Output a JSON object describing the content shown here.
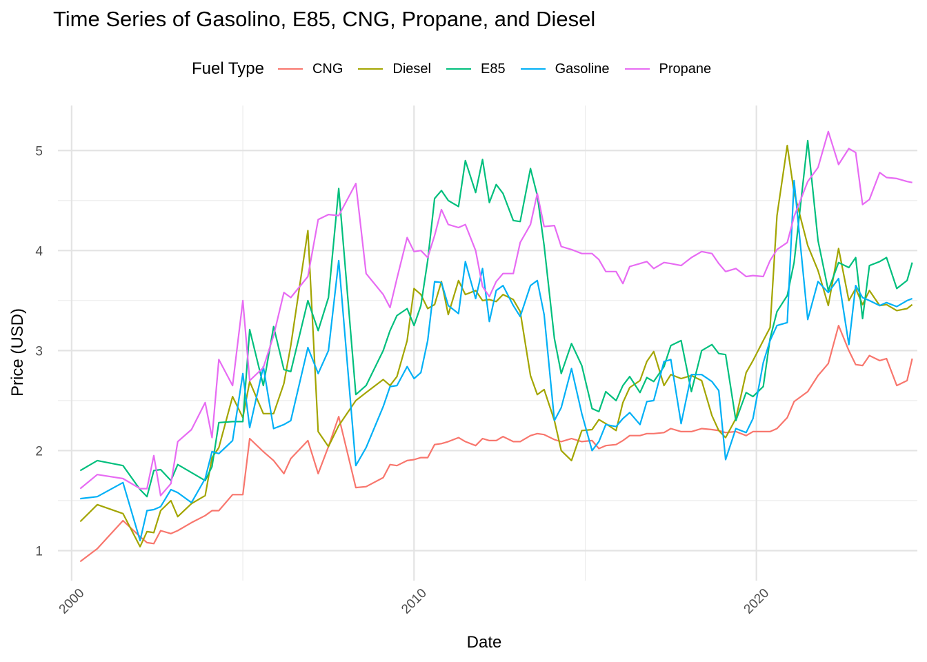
{
  "chart_data": {
    "type": "line",
    "title": "Time Series of Gasolino, E85, CNG, Propane, and Diesel",
    "xlabel": "Date",
    "ylabel": "Price (USD)",
    "legend_title": "Fuel Type",
    "legend_position": "top",
    "grid": true,
    "xlim": [
      1999.6,
      2024.7
    ],
    "ylim": [
      0.7,
      5.45
    ],
    "x_ticks": [
      2000,
      2010,
      2020
    ],
    "x_tick_labels": [
      "2000",
      "2010",
      "2020"
    ],
    "y_ticks": [
      1,
      2,
      3,
      4,
      5
    ],
    "y_tick_labels": [
      "1",
      "2",
      "3",
      "4",
      "5"
    ],
    "series": [
      {
        "name": "CNG",
        "color": "#F8766D",
        "x": [
          2000.25,
          2000.75,
          2001.5,
          2002.0,
          2002.2,
          2002.4,
          2002.6,
          2002.9,
          2003.1,
          2003.5,
          2003.9,
          2004.1,
          2004.3,
          2004.7,
          2005.0,
          2005.2,
          2005.6,
          2005.9,
          2006.2,
          2006.4,
          2006.9,
          2007.2,
          2007.5,
          2007.8,
          2008.3,
          2008.6,
          2009.1,
          2009.3,
          2009.5,
          2009.8,
          2010.0,
          2010.2,
          2010.4,
          2010.6,
          2010.8,
          2011.0,
          2011.3,
          2011.5,
          2011.8,
          2012.0,
          2012.2,
          2012.4,
          2012.6,
          2012.9,
          2013.1,
          2013.4,
          2013.6,
          2013.8,
          2014.1,
          2014.3,
          2014.6,
          2014.9,
          2015.2,
          2015.4,
          2015.6,
          2015.9,
          2016.1,
          2016.3,
          2016.6,
          2016.8,
          2017.0,
          2017.3,
          2017.5,
          2017.8,
          2018.1,
          2018.4,
          2018.7,
          2018.9,
          2019.1,
          2019.4,
          2019.7,
          2019.9,
          2020.2,
          2020.4,
          2020.6,
          2020.9,
          2021.1,
          2021.5,
          2021.8,
          2022.1,
          2022.4,
          2022.7,
          2022.9,
          2023.1,
          2023.3,
          2023.6,
          2023.8,
          2024.1,
          2024.4,
          2024.55
        ],
        "y": [
          0.89,
          1.02,
          1.3,
          1.14,
          1.08,
          1.07,
          1.2,
          1.17,
          1.2,
          1.28,
          1.35,
          1.4,
          1.4,
          1.56,
          1.56,
          2.12,
          1.99,
          1.9,
          1.77,
          1.92,
          2.1,
          1.77,
          2.04,
          2.34,
          1.63,
          1.64,
          1.73,
          1.86,
          1.85,
          1.9,
          1.91,
          1.93,
          1.93,
          2.06,
          2.07,
          2.09,
          2.13,
          2.09,
          2.05,
          2.12,
          2.1,
          2.1,
          2.14,
          2.09,
          2.09,
          2.15,
          2.17,
          2.16,
          2.11,
          2.09,
          2.12,
          2.09,
          2.1,
          2.02,
          2.05,
          2.06,
          2.1,
          2.15,
          2.15,
          2.17,
          2.17,
          2.18,
          2.22,
          2.19,
          2.19,
          2.22,
          2.21,
          2.2,
          2.18,
          2.19,
          2.15,
          2.19,
          2.19,
          2.19,
          2.22,
          2.33,
          2.49,
          2.59,
          2.75,
          2.87,
          3.25,
          3.0,
          2.86,
          2.85,
          2.95,
          2.9,
          2.92,
          2.65,
          2.7,
          2.92
        ]
      },
      {
        "name": "Diesel",
        "color": "#A3A500",
        "x": [
          2000.25,
          2000.75,
          2001.5,
          2002.0,
          2002.2,
          2002.4,
          2002.6,
          2002.9,
          2003.1,
          2003.5,
          2003.9,
          2004.1,
          2004.3,
          2004.7,
          2005.0,
          2005.2,
          2005.6,
          2005.9,
          2006.2,
          2006.4,
          2006.9,
          2007.2,
          2007.5,
          2007.8,
          2008.3,
          2008.6,
          2009.1,
          2009.3,
          2009.5,
          2009.8,
          2010.0,
          2010.2,
          2010.4,
          2010.6,
          2010.8,
          2011.0,
          2011.3,
          2011.5,
          2011.8,
          2012.0,
          2012.2,
          2012.4,
          2012.6,
          2012.9,
          2013.1,
          2013.4,
          2013.6,
          2013.8,
          2014.1,
          2014.3,
          2014.6,
          2014.9,
          2015.2,
          2015.4,
          2015.6,
          2015.9,
          2016.1,
          2016.3,
          2016.6,
          2016.8,
          2017.0,
          2017.3,
          2017.5,
          2017.8,
          2018.1,
          2018.4,
          2018.7,
          2018.9,
          2019.1,
          2019.4,
          2019.7,
          2019.9,
          2020.2,
          2020.4,
          2020.6,
          2020.9,
          2021.1,
          2021.5,
          2021.8,
          2022.1,
          2022.4,
          2022.7,
          2022.9,
          2023.1,
          2023.3,
          2023.6,
          2023.8,
          2024.1,
          2024.4,
          2024.55
        ],
        "y": [
          1.29,
          1.46,
          1.37,
          1.04,
          1.19,
          1.18,
          1.4,
          1.5,
          1.34,
          1.47,
          1.55,
          1.93,
          2.03,
          2.54,
          2.33,
          2.69,
          2.37,
          2.37,
          2.67,
          3.05,
          4.2,
          2.19,
          2.04,
          2.25,
          2.5,
          2.58,
          2.71,
          2.65,
          2.74,
          3.1,
          3.62,
          3.56,
          3.42,
          3.46,
          3.69,
          3.36,
          3.7,
          3.56,
          3.6,
          3.5,
          3.51,
          3.49,
          3.56,
          3.51,
          3.39,
          2.75,
          2.56,
          2.61,
          2.3,
          2.0,
          1.9,
          2.2,
          2.21,
          2.31,
          2.27,
          2.2,
          2.48,
          2.63,
          2.7,
          2.89,
          2.99,
          2.65,
          2.76,
          2.72,
          2.75,
          2.7,
          2.35,
          2.2,
          2.13,
          2.32,
          2.78,
          2.9,
          3.1,
          3.23,
          4.35,
          5.05,
          4.58,
          4.05,
          3.8,
          3.45,
          4.02,
          3.5,
          3.62,
          3.46,
          3.6,
          3.45,
          3.46,
          3.4,
          3.42,
          3.46
        ]
      },
      {
        "name": "E85",
        "color": "#00BF7D",
        "x": [
          2000.25,
          2000.75,
          2001.5,
          2002.0,
          2002.2,
          2002.4,
          2002.6,
          2002.9,
          2003.1,
          2003.5,
          2003.9,
          2004.1,
          2004.3,
          2004.7,
          2005.0,
          2005.2,
          2005.6,
          2005.9,
          2006.2,
          2006.4,
          2006.9,
          2007.2,
          2007.5,
          2007.8,
          2008.3,
          2008.6,
          2009.1,
          2009.3,
          2009.5,
          2009.8,
          2010.0,
          2010.2,
          2010.4,
          2010.6,
          2010.8,
          2011.0,
          2011.3,
          2011.5,
          2011.8,
          2012.0,
          2012.2,
          2012.4,
          2012.6,
          2012.9,
          2013.1,
          2013.4,
          2013.6,
          2013.8,
          2014.1,
          2014.3,
          2014.6,
          2014.9,
          2015.2,
          2015.4,
          2015.6,
          2015.9,
          2016.1,
          2016.3,
          2016.6,
          2016.8,
          2017.0,
          2017.3,
          2017.5,
          2017.8,
          2018.1,
          2018.4,
          2018.7,
          2018.9,
          2019.1,
          2019.4,
          2019.7,
          2019.9,
          2020.2,
          2020.4,
          2020.6,
          2020.9,
          2021.1,
          2021.5,
          2021.8,
          2022.1,
          2022.4,
          2022.7,
          2022.9,
          2023.1,
          2023.3,
          2023.6,
          2023.8,
          2024.1,
          2024.4,
          2024.55
        ],
        "y": [
          1.8,
          1.9,
          1.85,
          1.61,
          1.54,
          1.8,
          1.81,
          1.7,
          1.86,
          1.78,
          1.7,
          1.84,
          2.28,
          2.29,
          2.29,
          3.21,
          2.65,
          3.24,
          2.81,
          2.79,
          3.5,
          3.2,
          3.53,
          4.62,
          2.56,
          2.65,
          3.0,
          3.2,
          3.35,
          3.42,
          3.25,
          3.45,
          3.9,
          4.52,
          4.6,
          4.5,
          4.44,
          4.9,
          4.58,
          4.91,
          4.48,
          4.66,
          4.57,
          4.3,
          4.29,
          4.82,
          4.55,
          4.05,
          3.12,
          2.77,
          3.07,
          2.85,
          2.42,
          2.39,
          2.59,
          2.5,
          2.65,
          2.74,
          2.58,
          2.73,
          2.69,
          2.84,
          3.05,
          3.1,
          2.59,
          3.0,
          3.06,
          2.97,
          2.96,
          2.3,
          2.58,
          2.54,
          2.64,
          3.12,
          3.39,
          3.55,
          3.88,
          5.1,
          4.1,
          3.6,
          3.88,
          3.83,
          3.93,
          3.32,
          3.85,
          3.89,
          3.93,
          3.62,
          3.7,
          3.88
        ]
      },
      {
        "name": "Gasoline",
        "color": "#00B0F6",
        "x": [
          2000.25,
          2000.75,
          2001.5,
          2002.0,
          2002.2,
          2002.4,
          2002.6,
          2002.9,
          2003.1,
          2003.5,
          2003.9,
          2004.1,
          2004.3,
          2004.7,
          2005.0,
          2005.2,
          2005.6,
          2005.9,
          2006.2,
          2006.4,
          2006.9,
          2007.2,
          2007.5,
          2007.8,
          2008.3,
          2008.6,
          2009.1,
          2009.3,
          2009.5,
          2009.8,
          2010.0,
          2010.2,
          2010.4,
          2010.6,
          2010.8,
          2011.0,
          2011.3,
          2011.5,
          2011.8,
          2012.0,
          2012.2,
          2012.4,
          2012.6,
          2012.9,
          2013.1,
          2013.4,
          2013.6,
          2013.8,
          2014.1,
          2014.3,
          2014.6,
          2014.9,
          2015.2,
          2015.4,
          2015.6,
          2015.9,
          2016.1,
          2016.3,
          2016.6,
          2016.8,
          2017.0,
          2017.3,
          2017.5,
          2017.8,
          2018.1,
          2018.4,
          2018.7,
          2018.9,
          2019.1,
          2019.4,
          2019.7,
          2019.9,
          2020.2,
          2020.4,
          2020.6,
          2020.9,
          2021.1,
          2021.5,
          2021.8,
          2022.1,
          2022.4,
          2022.7,
          2022.9,
          2023.1,
          2023.3,
          2023.6,
          2023.8,
          2024.1,
          2024.4,
          2024.55
        ],
        "y": [
          1.52,
          1.54,
          1.68,
          1.1,
          1.4,
          1.41,
          1.44,
          1.61,
          1.58,
          1.48,
          1.72,
          1.99,
          1.97,
          2.1,
          2.77,
          2.23,
          2.84,
          2.22,
          2.26,
          2.3,
          3.03,
          2.77,
          3.0,
          3.9,
          1.85,
          2.03,
          2.44,
          2.64,
          2.65,
          2.84,
          2.72,
          2.78,
          3.1,
          3.69,
          3.68,
          3.45,
          3.37,
          3.89,
          3.52,
          3.82,
          3.29,
          3.6,
          3.65,
          3.45,
          3.34,
          3.65,
          3.7,
          3.36,
          2.3,
          2.43,
          2.82,
          2.37,
          2.0,
          2.09,
          2.26,
          2.24,
          2.32,
          2.38,
          2.26,
          2.49,
          2.5,
          2.89,
          2.91,
          2.27,
          2.76,
          2.76,
          2.69,
          2.6,
          1.91,
          2.22,
          2.18,
          2.32,
          2.88,
          3.1,
          3.25,
          3.28,
          4.7,
          3.31,
          3.69,
          3.58,
          3.72,
          3.06,
          3.65,
          3.53,
          3.5,
          3.45,
          3.48,
          3.44,
          3.5,
          3.52
        ]
      },
      {
        "name": "Propane",
        "color": "#E76BF3",
        "x": [
          2000.25,
          2000.75,
          2001.5,
          2002.0,
          2002.2,
          2002.4,
          2002.6,
          2002.9,
          2003.1,
          2003.5,
          2003.9,
          2004.1,
          2004.3,
          2004.7,
          2005.0,
          2005.2,
          2005.6,
          2005.9,
          2006.2,
          2006.4,
          2006.9,
          2007.2,
          2007.5,
          2007.8,
          2008.3,
          2008.6,
          2009.1,
          2009.3,
          2009.5,
          2009.8,
          2010.0,
          2010.2,
          2010.4,
          2010.6,
          2010.8,
          2011.0,
          2011.3,
          2011.5,
          2011.8,
          2012.0,
          2012.2,
          2012.4,
          2012.6,
          2012.9,
          2013.1,
          2013.4,
          2013.6,
          2013.8,
          2014.1,
          2014.3,
          2014.6,
          2014.9,
          2015.2,
          2015.4,
          2015.6,
          2015.9,
          2016.1,
          2016.3,
          2016.6,
          2016.8,
          2017.0,
          2017.3,
          2017.5,
          2017.8,
          2018.1,
          2018.4,
          2018.7,
          2018.9,
          2019.1,
          2019.4,
          2019.7,
          2019.9,
          2020.2,
          2020.4,
          2020.6,
          2020.9,
          2021.1,
          2021.5,
          2021.8,
          2022.1,
          2022.4,
          2022.7,
          2022.9,
          2023.1,
          2023.3,
          2023.6,
          2023.8,
          2024.1,
          2024.4,
          2024.55
        ],
        "y": [
          1.62,
          1.76,
          1.72,
          1.62,
          1.62,
          1.95,
          1.55,
          1.67,
          2.09,
          2.21,
          2.48,
          2.13,
          2.91,
          2.65,
          3.5,
          2.7,
          2.83,
          3.15,
          3.58,
          3.53,
          3.74,
          4.31,
          4.36,
          4.35,
          4.67,
          3.77,
          3.56,
          3.43,
          3.72,
          4.13,
          3.99,
          4.0,
          3.93,
          4.15,
          4.41,
          4.26,
          4.23,
          4.26,
          4.0,
          3.64,
          3.54,
          3.69,
          3.77,
          3.77,
          4.08,
          4.26,
          4.57,
          4.24,
          4.25,
          4.04,
          4.01,
          3.97,
          3.97,
          3.91,
          3.79,
          3.79,
          3.67,
          3.84,
          3.87,
          3.89,
          3.82,
          3.88,
          3.87,
          3.85,
          3.93,
          3.99,
          3.97,
          3.87,
          3.79,
          3.82,
          3.74,
          3.75,
          3.74,
          3.9,
          4.01,
          4.08,
          4.34,
          4.69,
          4.83,
          5.19,
          4.86,
          5.02,
          4.98,
          4.46,
          4.51,
          4.78,
          4.73,
          4.72,
          4.69,
          4.68
        ]
      }
    ]
  }
}
